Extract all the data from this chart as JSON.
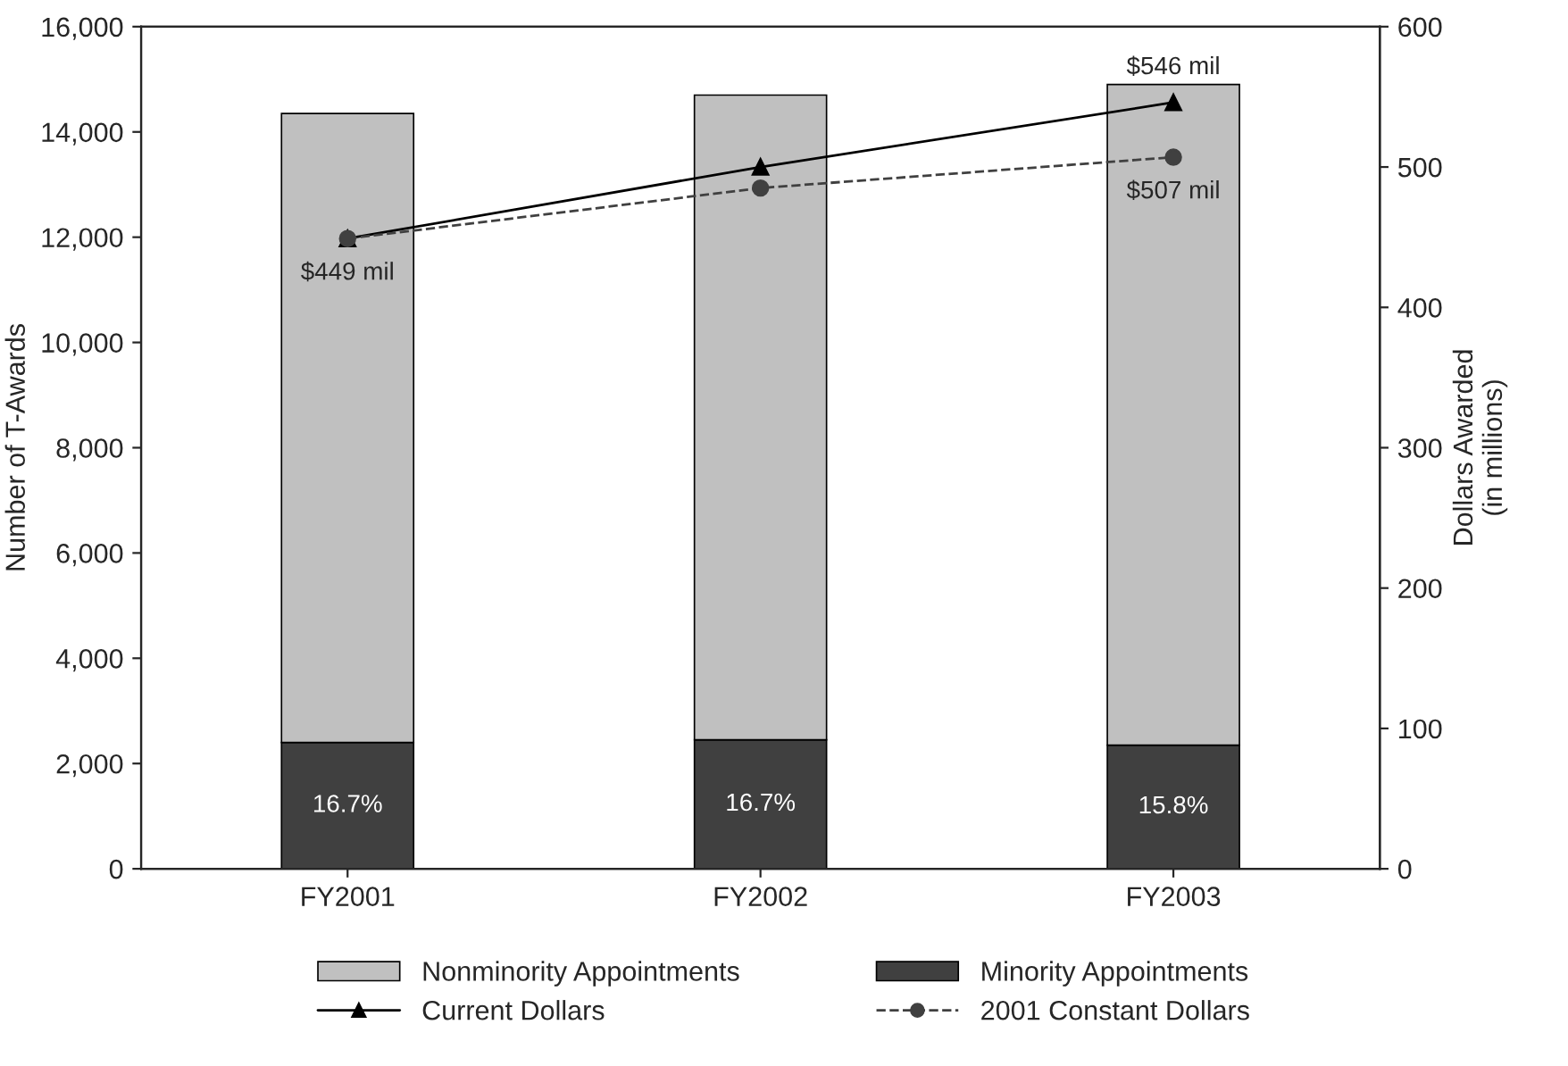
{
  "chart_data": {
    "type": "bar",
    "stacked": true,
    "ylabel": "Number of T-Awards",
    "y2label": "Dollars Awarded\n(in millions)",
    "categories": [
      "FY2001",
      "FY2002",
      "FY2003"
    ],
    "series": [
      {
        "name": "Minority Appointments",
        "color": "#404040",
        "values": [
          2400,
          2450,
          2350
        ]
      },
      {
        "name": "Nonminority Appointments",
        "color": "#c0c0c0",
        "values": [
          11950,
          12250,
          12550
        ]
      },
      {
        "name": "Current Dollars",
        "type": "line",
        "axis": "y2",
        "color": "#000000",
        "marker": "triangle",
        "line_style": "solid",
        "values": [
          449,
          500,
          546
        ],
        "value_labels": [
          "$449 mil",
          null,
          "$546 mil"
        ]
      },
      {
        "name": "2001 Constant Dollars",
        "type": "line",
        "axis": "y2",
        "color": "#404040",
        "marker": "circle",
        "line_style": "dashed",
        "values": [
          449,
          485,
          507
        ],
        "value_labels": [
          null,
          null,
          "$507 mil"
        ]
      }
    ],
    "ylim": [
      0,
      16000
    ],
    "yticks": [
      0,
      {
        "value": 2000,
        "label": "2,000"
      },
      {
        "value": 4000,
        "label": "4,000"
      },
      {
        "value": 6000,
        "label": "6,000"
      },
      {
        "value": 8000,
        "label": "8,000"
      },
      {
        "value": 10000,
        "label": "10,000"
      },
      {
        "value": 12000,
        "label": "12,000"
      },
      {
        "value": 14000,
        "label": "14,000"
      },
      {
        "value": 16000,
        "label": "16,000"
      }
    ],
    "y2lim": [
      0,
      600
    ],
    "y2ticks": [
      0,
      100,
      200,
      300,
      400,
      500,
      600
    ],
    "annotations": [
      "16.7%",
      "16.7%",
      "15.8%"
    ],
    "legend": "bottom",
    "grid": false
  }
}
